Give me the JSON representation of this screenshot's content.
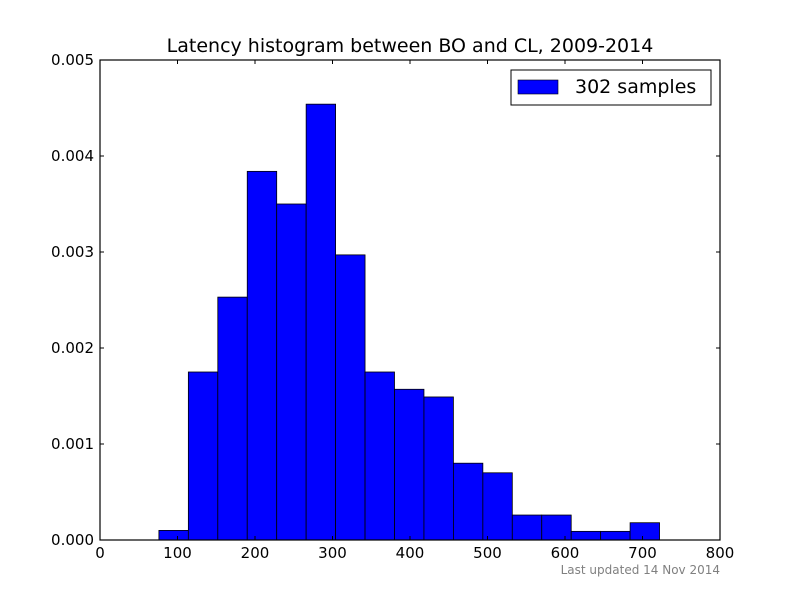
{
  "chart_data": {
    "type": "histogram",
    "title": "Latency histogram between BO and CL, 2009-2014",
    "xlabel": "",
    "ylabel": "",
    "xlim": [
      0,
      800
    ],
    "ylim": [
      0,
      0.005
    ],
    "x_ticks": [
      0,
      100,
      200,
      300,
      400,
      500,
      600,
      700,
      800
    ],
    "y_ticks": [
      0.0,
      0.001,
      0.002,
      0.003,
      0.004,
      0.005
    ],
    "x_tick_labels": [
      "0",
      "100",
      "200",
      "300",
      "400",
      "500",
      "600",
      "700",
      "800"
    ],
    "y_tick_labels": [
      "0.000",
      "0.001",
      "0.002",
      "0.003",
      "0.004",
      "0.005"
    ],
    "grid": false,
    "legend_position": "top-right",
    "series": [
      {
        "name": "302 samples",
        "color": "#0000ff",
        "bins": [
          {
            "x0": 76,
            "x1": 114,
            "density": 0.0001
          },
          {
            "x0": 114,
            "x1": 152,
            "density": 0.00175
          },
          {
            "x0": 152,
            "x1": 190,
            "density": 0.00253
          },
          {
            "x0": 190,
            "x1": 228,
            "density": 0.00384
          },
          {
            "x0": 228,
            "x1": 266,
            "density": 0.0035
          },
          {
            "x0": 266,
            "x1": 304,
            "density": 0.00454
          },
          {
            "x0": 304,
            "x1": 342,
            "density": 0.00297
          },
          {
            "x0": 342,
            "x1": 380,
            "density": 0.00175
          },
          {
            "x0": 380,
            "x1": 418,
            "density": 0.00157
          },
          {
            "x0": 418,
            "x1": 456,
            "density": 0.00149
          },
          {
            "x0": 456,
            "x1": 494,
            "density": 0.0008
          },
          {
            "x0": 494,
            "x1": 532,
            "density": 0.0007
          },
          {
            "x0": 532,
            "x1": 570,
            "density": 0.00026
          },
          {
            "x0": 570,
            "x1": 608,
            "density": 0.00026
          },
          {
            "x0": 608,
            "x1": 646,
            "density": 9e-05
          },
          {
            "x0": 646,
            "x1": 684,
            "density": 9e-05
          },
          {
            "x0": 684,
            "x1": 722,
            "density": 0.00018
          }
        ]
      }
    ]
  },
  "footer": {
    "note": "Last updated 14 Nov 2014"
  }
}
